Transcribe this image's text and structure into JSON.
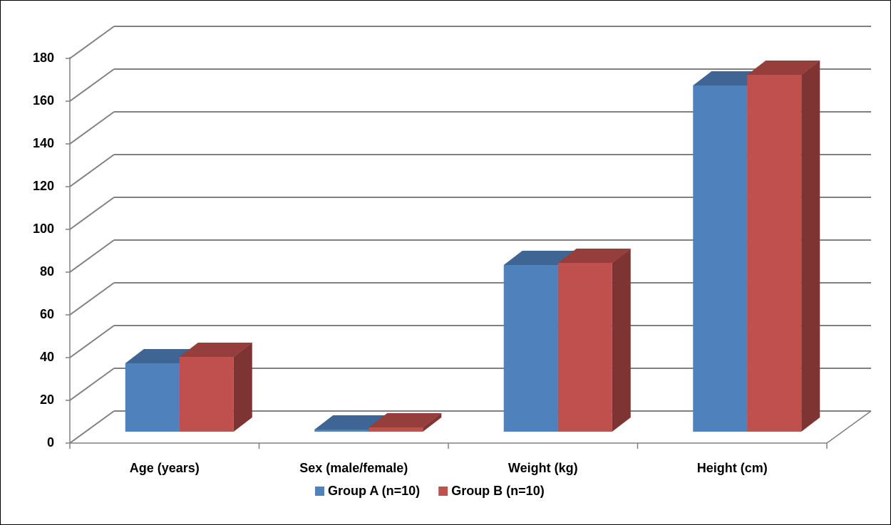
{
  "chart_data": {
    "type": "bar3d",
    "categories": [
      "Age (years)",
      "Sex (male/female)",
      "Weight (kg)",
      "Height (cm)"
    ],
    "series": [
      {
        "name": "Group A (n=10)",
        "color": "#4f81bd",
        "values": [
          32,
          1,
          78,
          162
        ]
      },
      {
        "name": "Group B (n=10)",
        "color": "#c0504d",
        "values": [
          35,
          2,
          79,
          167
        ]
      }
    ],
    "ylim": [
      0,
      180
    ],
    "yticks": [
      0,
      20,
      40,
      60,
      80,
      100,
      120,
      140,
      160,
      180
    ],
    "grid": true,
    "legend": "bottom"
  }
}
